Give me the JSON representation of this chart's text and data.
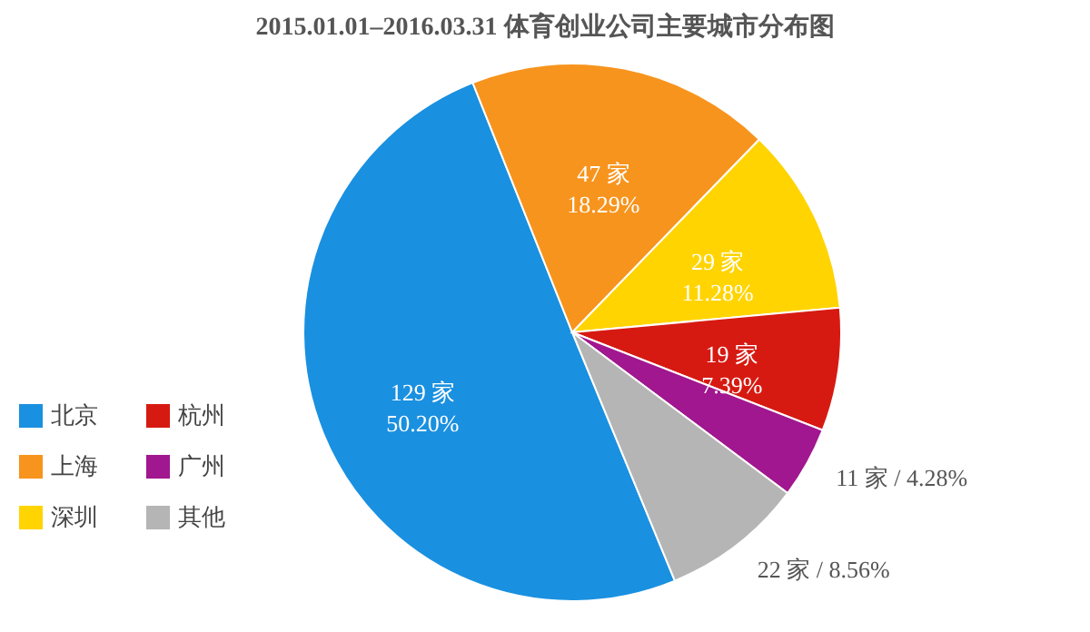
{
  "chart_data": {
    "type": "pie",
    "title": "2015.01.01–2016.03.31 体育创业公司主要城市分布图",
    "categories": [
      "北京",
      "上海",
      "深圳",
      "杭州",
      "广州",
      "其他"
    ],
    "values": [
      129,
      47,
      29,
      19,
      11,
      22
    ],
    "value_labels": [
      "129 家\n50.20%",
      "47 家\n18.29%",
      "29 家\n11.28%",
      "19 家\n7.39%",
      "11 家 / 4.28%",
      "22 家 / 8.56%"
    ],
    "colors": [
      "#1a90e0",
      "#f7941d",
      "#ffd400",
      "#d61a12",
      "#a1178f",
      "#b5b5b5"
    ],
    "legend": "left"
  }
}
